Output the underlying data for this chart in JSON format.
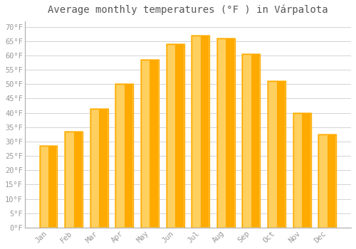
{
  "title": "Average monthly temperatures (°F ) in Várpalota",
  "months": [
    "Jan",
    "Feb",
    "Mar",
    "Apr",
    "May",
    "Jun",
    "Jul",
    "Aug",
    "Sep",
    "Oct",
    "Nov",
    "Dec"
  ],
  "values": [
    28.5,
    33.5,
    41.5,
    50.0,
    58.5,
    64.0,
    67.0,
    66.0,
    60.5,
    51.0,
    40.0,
    32.5
  ],
  "bar_color_main": "#FFAA00",
  "bar_color_light": "#FFD060",
  "background_color": "#FFFFFF",
  "grid_color": "#CCCCCC",
  "ylim": [
    0,
    72
  ],
  "yticks": [
    0,
    5,
    10,
    15,
    20,
    25,
    30,
    35,
    40,
    45,
    50,
    55,
    60,
    65,
    70
  ],
  "tick_label_color": "#999999",
  "title_color": "#555555",
  "title_fontsize": 10,
  "tick_fontsize": 7.5,
  "font_family": "monospace",
  "spine_color": "#AAAAAA"
}
